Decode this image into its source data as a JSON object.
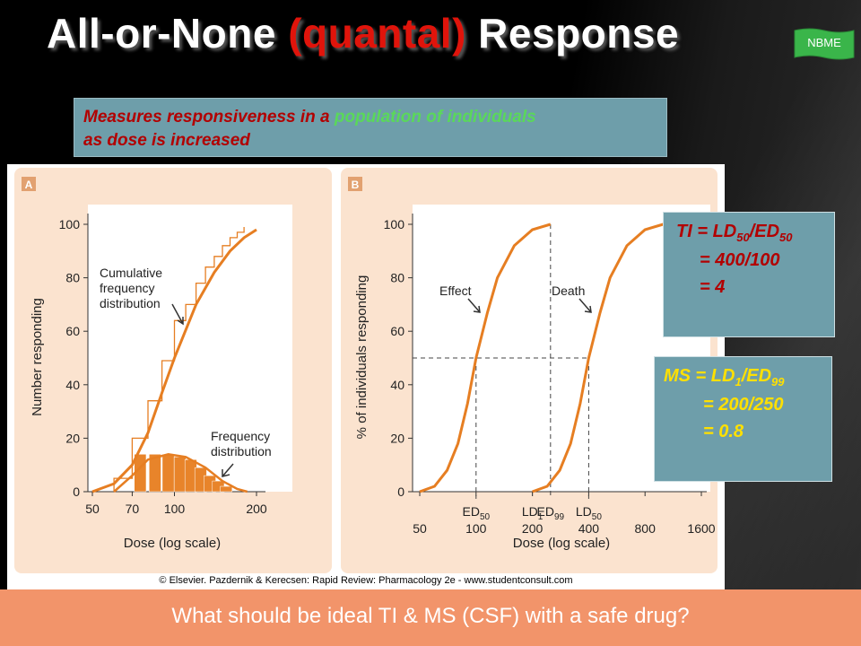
{
  "slide": {
    "title_pre": "All-or-None ",
    "title_hl": "(quantal)",
    "title_post": " Response",
    "nbme_label": "NBME",
    "subtitle_line1_a": "Measures responsiveness in a ",
    "subtitle_line1_b": "population of individuals",
    "subtitle_line2": "as dose is increased",
    "credit": "© Elsevier. Pazdernik & Kerecsen: Rapid Review: Pharmacology 2e - www.studentconsult.com",
    "question": "What should be ideal TI & MS (CSF) with a safe drug?",
    "colors": {
      "accent_red": "#e0140b",
      "box_teal": "#6e9eaa",
      "curve_orange": "#e67e22",
      "panel_bg": "#fbe3cf",
      "question_bg": "#f2946a",
      "yellow": "#ffe000"
    }
  },
  "ti_box": {
    "l1_pre": "TI = LD",
    "l1_sub1": "50",
    "l1_mid": "/ED",
    "l1_sub2": "50",
    "l2": "= 400/100",
    "l3": "= 4"
  },
  "ms_box": {
    "l1_pre": "MS = LD",
    "l1_sub1": "1",
    "l1_mid": "/ED",
    "l1_sub2": "99",
    "l2": "= 200/250",
    "l3": "= 0.8"
  },
  "chart_data": [
    {
      "type": "line",
      "panel_label": "A",
      "xlabel": "Dose (log scale)",
      "ylabel": "Number responding",
      "x_scale": "log",
      "x_ticks": [
        50,
        70,
        100,
        200
      ],
      "y_ticks": [
        0,
        20,
        40,
        60,
        80,
        100
      ],
      "ylim": [
        0,
        100
      ],
      "annotations": [
        "Cumulative frequency distribution",
        "Frequency distribution"
      ],
      "annotation_lines": [
        [
          "Cumulative",
          "frequency",
          "distribution"
        ],
        [
          "Frequency",
          "distribution"
        ]
      ],
      "series": [
        {
          "kind": "cumulative_curve",
          "x": [
            50,
            60,
            70,
            80,
            90,
            100,
            120,
            140,
            160,
            180,
            200
          ],
          "y": [
            0,
            3,
            10,
            22,
            37,
            50,
            70,
            82,
            90,
            95,
            98
          ]
        },
        {
          "kind": "cumulative_steps",
          "x": [
            60,
            70,
            80,
            90,
            100,
            110,
            120,
            130,
            140,
            150,
            160,
            170,
            180
          ],
          "y": [
            5,
            20,
            34,
            49,
            64,
            70,
            78,
            84,
            88,
            92,
            95,
            97,
            99
          ]
        },
        {
          "kind": "frequency_histogram",
          "x": [
            75,
            85,
            95,
            105,
            115,
            125,
            135,
            145,
            155
          ],
          "y": [
            14,
            14,
            14,
            13,
            12,
            9,
            6,
            4,
            2
          ]
        }
      ]
    },
    {
      "type": "line",
      "panel_label": "B",
      "xlabel": "Dose (log scale)",
      "ylabel": "% of individuals responding",
      "x_scale": "log",
      "x_ticks": [
        50,
        100,
        200,
        400,
        800,
        1600
      ],
      "y_ticks": [
        0,
        20,
        40,
        60,
        80,
        100
      ],
      "ylim": [
        0,
        100
      ],
      "annotations": [
        "Effect",
        "Death"
      ],
      "x_markers": [
        {
          "dose": 100,
          "label": "ED",
          "sub": "50"
        },
        {
          "dose": 200,
          "label": "LD",
          "sub": "1"
        },
        {
          "dose": 250,
          "label": "ED",
          "sub": "99"
        },
        {
          "dose": 400,
          "label": "LD",
          "sub": "50"
        }
      ],
      "series": [
        {
          "name": "Effect",
          "x": [
            50,
            60,
            70,
            80,
            90,
            100,
            115,
            130,
            160,
            200,
            250
          ],
          "y": [
            0,
            2,
            8,
            18,
            33,
            50,
            67,
            80,
            92,
            98,
            100
          ]
        },
        {
          "name": "Death",
          "x": [
            200,
            240,
            280,
            320,
            360,
            400,
            460,
            520,
            640,
            800,
            1000
          ],
          "y": [
            0,
            2,
            8,
            18,
            33,
            50,
            67,
            80,
            92,
            98,
            100
          ]
        }
      ]
    }
  ]
}
